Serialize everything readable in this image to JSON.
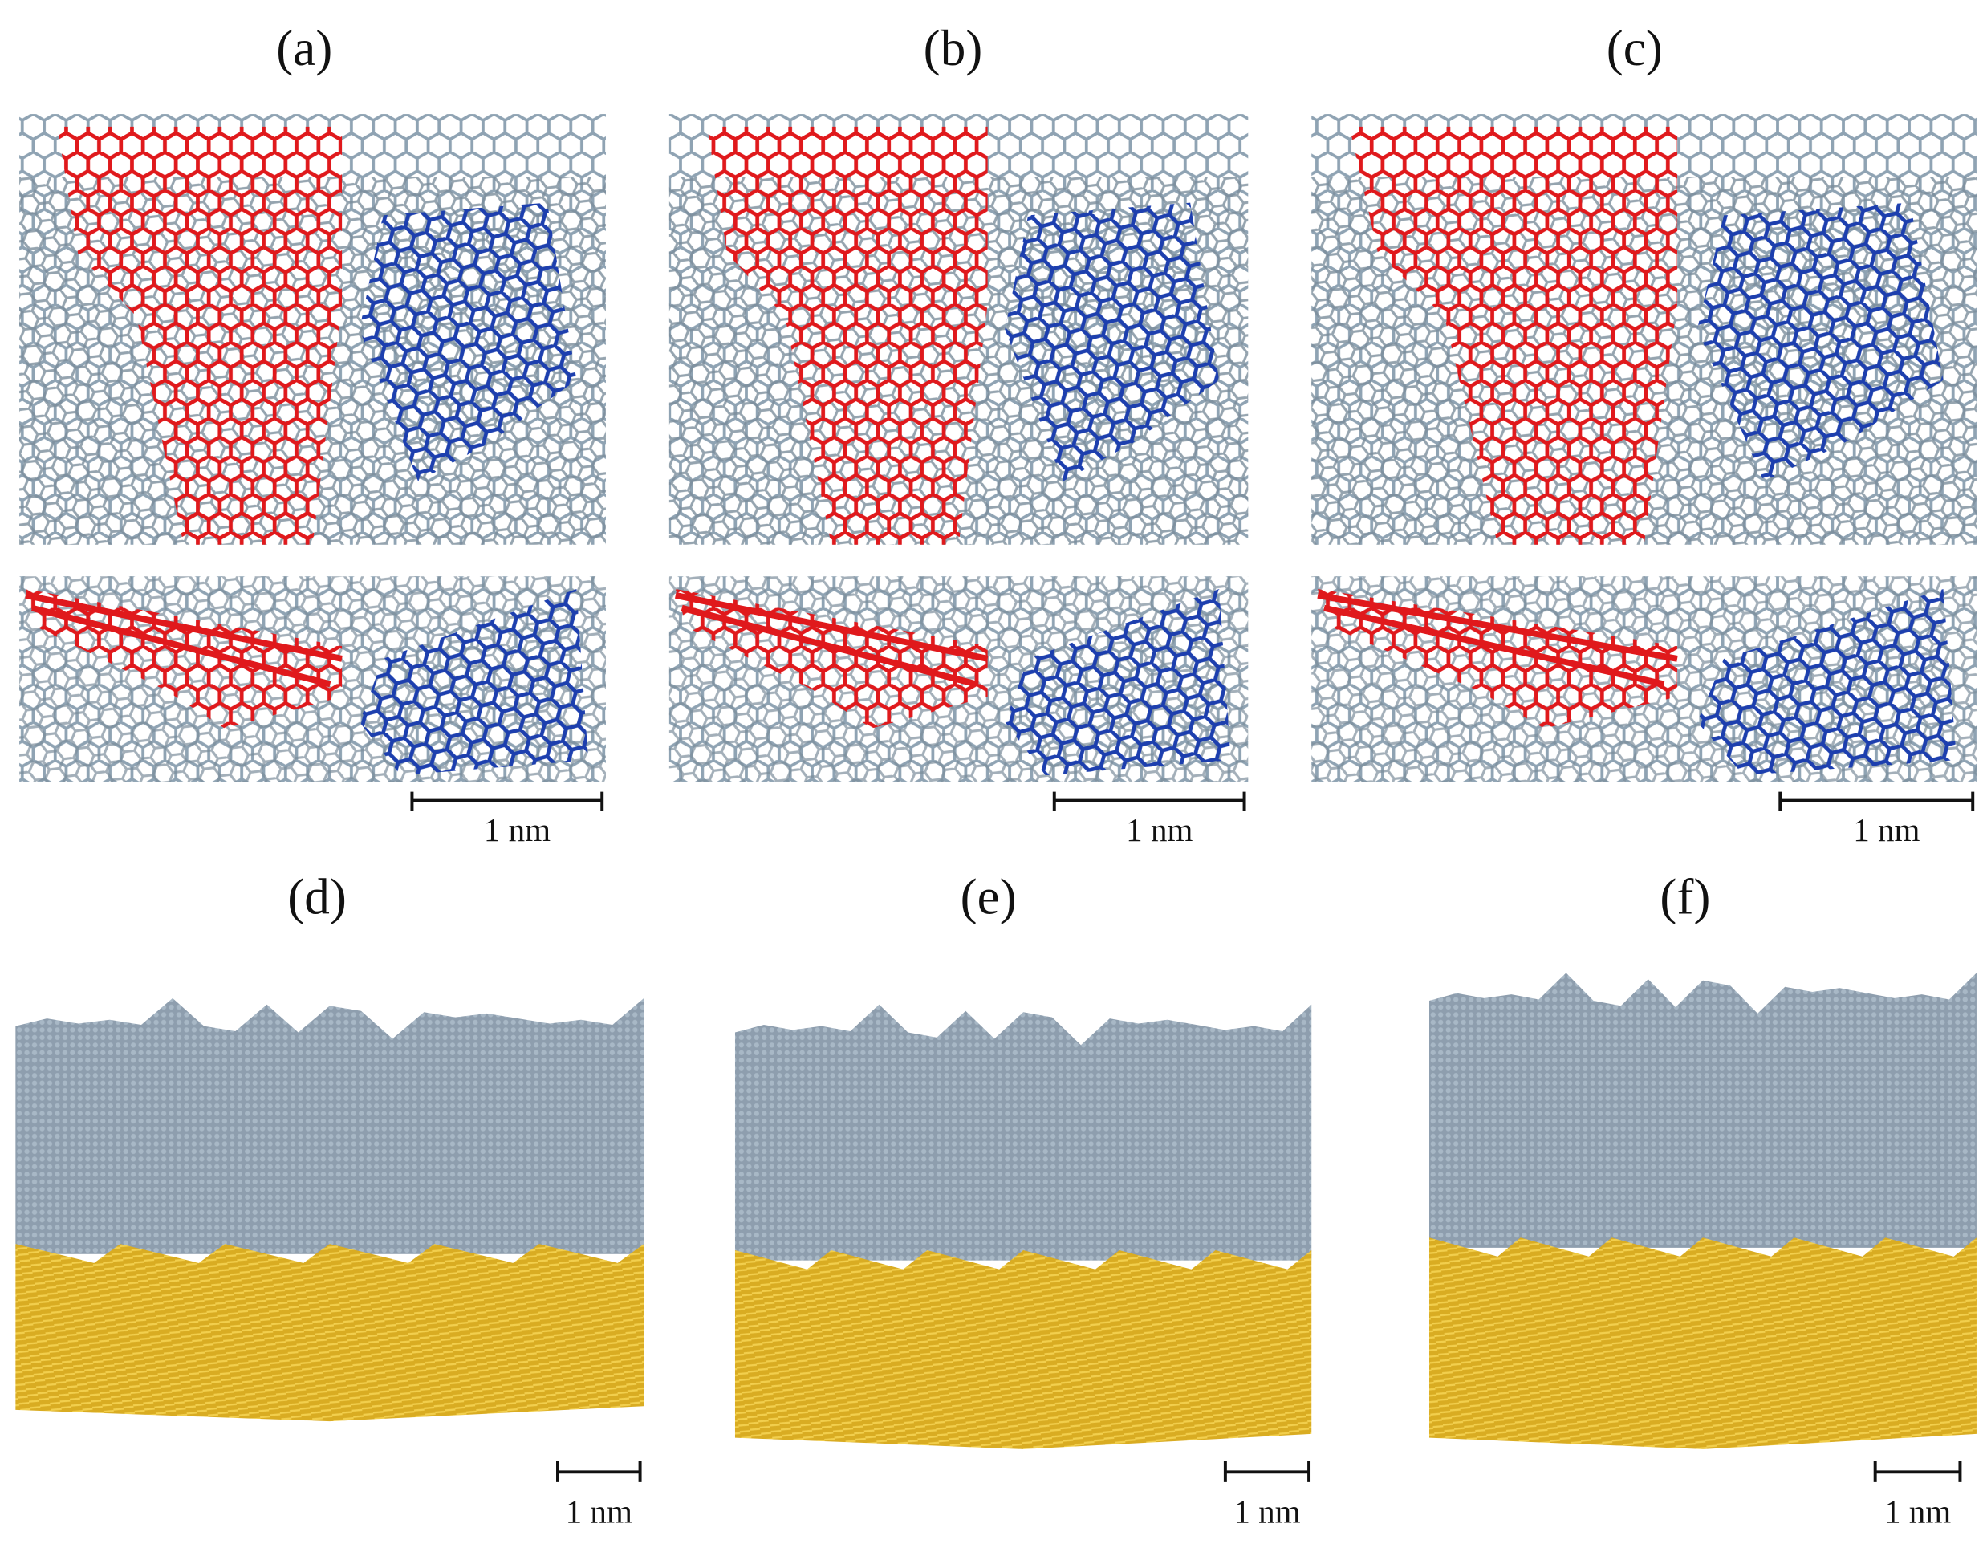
{
  "panels": [
    {
      "label": "(a)",
      "scale_label": "1 nm"
    },
    {
      "label": "(b)",
      "scale_label": "1 nm"
    },
    {
      "label": "(c)",
      "scale_label": "1 nm"
    },
    {
      "label": "(d)",
      "scale_label": "1 nm"
    },
    {
      "label": "(e)",
      "scale_label": "1 nm"
    },
    {
      "label": "(f)",
      "scale_label": "1 nm"
    }
  ]
}
